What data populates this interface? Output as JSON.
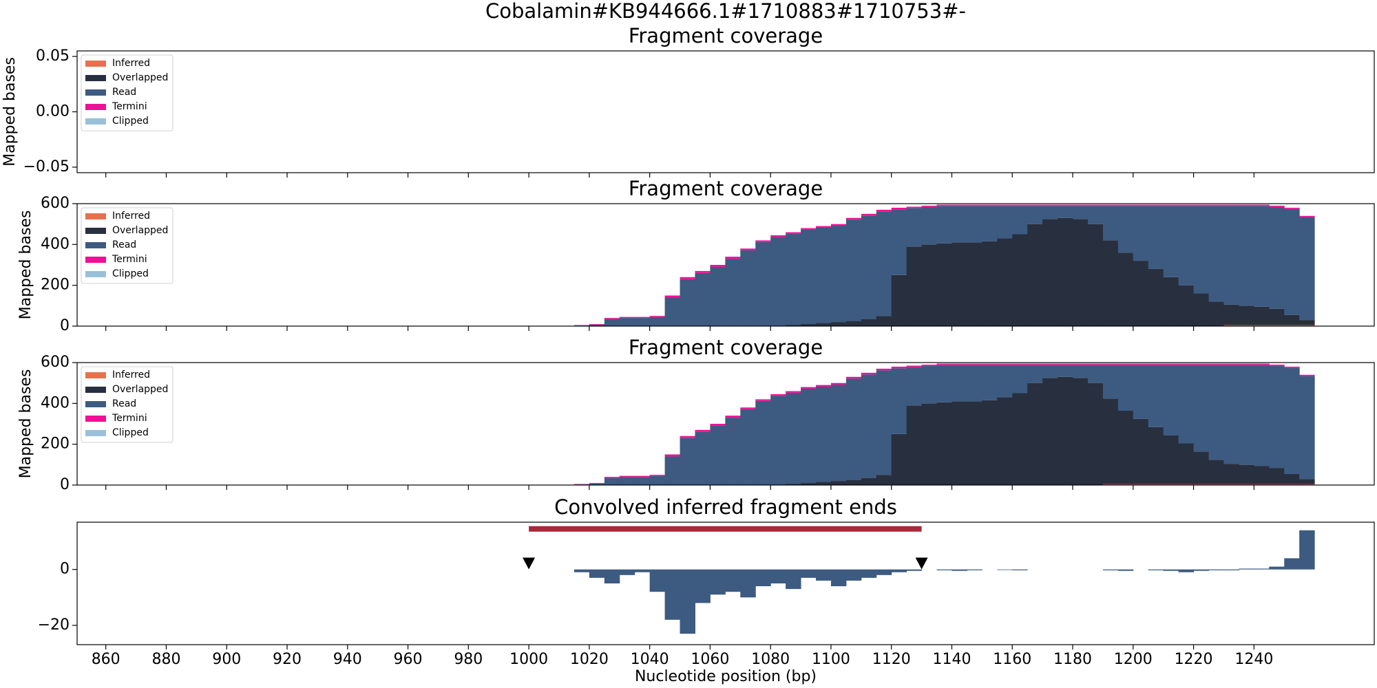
{
  "title": "Cobalamin#KB944666.1#1710883#1710753#-",
  "chart_data": [
    {
      "type": "histogram",
      "title": "Fragment coverage",
      "ylabel": "Mapped bases",
      "ylim": [
        -0.055,
        0.055
      ],
      "yticks": [
        {
          "value": -0.05,
          "label": "−0.05"
        },
        {
          "value": 0,
          "label": "0.00"
        },
        {
          "value": 0.05,
          "label": "0.05"
        }
      ],
      "legend": "upper left",
      "series": [
        {
          "name": "Inferred",
          "color": "#e8704e"
        },
        {
          "name": "Overlapped",
          "color": "#282f3f"
        },
        {
          "name": "Read",
          "color": "#3d5a80"
        },
        {
          "name": "Termini",
          "color": "#ee1196"
        },
        {
          "name": "Clipped",
          "color": "#98c1d9"
        }
      ]
    },
    {
      "type": "histogram",
      "title": "Fragment coverage",
      "ylabel": "Mapped bases",
      "ylim": [
        0,
        600
      ],
      "yticks": [
        0,
        200,
        400,
        600
      ],
      "legend": "upper left",
      "bins": [
        1015,
        1020,
        1025,
        1030,
        1035,
        1040,
        1045,
        1050,
        1055,
        1060,
        1065,
        1070,
        1075,
        1080,
        1085,
        1090,
        1095,
        1100,
        1105,
        1110,
        1115,
        1120,
        1125,
        1130,
        1135,
        1140,
        1145,
        1150,
        1155,
        1160,
        1165,
        1170,
        1175,
        1180,
        1185,
        1190,
        1195,
        1200,
        1205,
        1210,
        1215,
        1220,
        1225,
        1230,
        1235,
        1240,
        1245,
        1250,
        1255,
        1260
      ],
      "series": [
        {
          "name": "Inferred",
          "color": "#e8704e",
          "values": [
            0,
            0,
            0,
            0,
            0,
            0,
            0,
            0,
            0,
            0,
            0,
            0,
            0,
            0,
            0,
            0,
            0,
            0,
            0,
            0,
            0,
            0,
            0,
            0,
            0,
            0,
            0,
            0,
            0,
            0,
            0,
            0,
            0,
            0,
            0,
            0,
            0,
            0,
            0,
            0,
            0,
            0,
            0,
            5,
            5,
            5,
            5,
            5,
            5
          ]
        },
        {
          "name": "Overlapped",
          "color": "#282f3f",
          "values": [
            0,
            0,
            0,
            0,
            0,
            0,
            0,
            0,
            0,
            0,
            0,
            0,
            0,
            0,
            5,
            10,
            15,
            20,
            25,
            35,
            50,
            250,
            390,
            400,
            405,
            410,
            410,
            415,
            430,
            450,
            500,
            525,
            530,
            525,
            500,
            420,
            360,
            320,
            280,
            240,
            200,
            160,
            120,
            100,
            95,
            90,
            80,
            50,
            25
          ]
        },
        {
          "name": "Read",
          "color": "#3d5a80",
          "values": [
            3,
            7,
            35,
            40,
            40,
            45,
            140,
            230,
            260,
            290,
            330,
            372,
            412,
            437,
            447,
            462,
            467,
            472,
            497,
            507,
            512,
            322,
            189,
            184,
            184,
            179,
            179,
            174,
            159,
            139,
            89,
            64,
            59,
            64,
            89,
            169,
            229,
            269,
            309,
            349,
            389,
            429,
            469,
            484,
            489,
            494,
            499,
            519,
            504
          ]
        },
        {
          "name": "Termini",
          "color": "#ee1196",
          "values": [
            2,
            3,
            5,
            5,
            5,
            5,
            10,
            10,
            10,
            10,
            10,
            8,
            8,
            8,
            8,
            8,
            8,
            8,
            8,
            8,
            8,
            8,
            6,
            6,
            6,
            6,
            6,
            6,
            6,
            6,
            6,
            6,
            6,
            6,
            6,
            6,
            6,
            6,
            6,
            6,
            6,
            6,
            6,
            6,
            6,
            6,
            6,
            6,
            6
          ]
        },
        {
          "name": "Clipped",
          "color": "#98c1d9",
          "values": [
            0,
            0,
            0,
            0,
            0,
            0,
            0,
            0,
            0,
            0,
            0,
            0,
            0,
            0,
            0,
            0,
            0,
            0,
            0,
            0,
            0,
            0,
            0,
            0,
            0,
            0,
            0,
            0,
            0,
            0,
            0,
            0,
            0,
            0,
            0,
            0,
            0,
            0,
            0,
            0,
            0,
            0,
            0,
            0,
            0,
            0,
            0,
            0,
            0
          ]
        }
      ]
    },
    {
      "type": "histogram",
      "title": "Fragment coverage",
      "ylabel": "Mapped bases",
      "ylim": [
        0,
        600
      ],
      "yticks": [
        0,
        200,
        400,
        600
      ],
      "legend": "upper left",
      "bins": [
        1015,
        1020,
        1025,
        1030,
        1035,
        1040,
        1045,
        1050,
        1055,
        1060,
        1065,
        1070,
        1075,
        1080,
        1085,
        1090,
        1095,
        1100,
        1105,
        1110,
        1115,
        1120,
        1125,
        1130,
        1135,
        1140,
        1145,
        1150,
        1155,
        1160,
        1165,
        1170,
        1175,
        1180,
        1185,
        1190,
        1195,
        1200,
        1205,
        1210,
        1215,
        1220,
        1225,
        1230,
        1235,
        1240,
        1245,
        1250,
        1255,
        1260
      ],
      "series": [
        {
          "name": "Inferred",
          "color": "#e8704e",
          "values": [
            0,
            0,
            0,
            0,
            0,
            0,
            0,
            0,
            0,
            0,
            0,
            0,
            0,
            0,
            0,
            0,
            0,
            0,
            0,
            0,
            0,
            0,
            0,
            0,
            0,
            0,
            0,
            0,
            0,
            0,
            0,
            0,
            0,
            0,
            0,
            4,
            4,
            4,
            4,
            4,
            4,
            4,
            4,
            4,
            4,
            4,
            4,
            4,
            4
          ]
        },
        {
          "name": "Overlapped",
          "color": "#282f3f",
          "values": [
            0,
            0,
            0,
            0,
            0,
            0,
            0,
            0,
            0,
            0,
            0,
            0,
            0,
            0,
            5,
            10,
            15,
            20,
            25,
            35,
            50,
            250,
            390,
            400,
            405,
            410,
            410,
            415,
            430,
            450,
            500,
            525,
            530,
            525,
            500,
            420,
            360,
            320,
            280,
            240,
            200,
            160,
            120,
            100,
            95,
            90,
            80,
            50,
            25
          ]
        },
        {
          "name": "Read",
          "color": "#3d5a80",
          "values": [
            3,
            7,
            35,
            40,
            40,
            45,
            140,
            230,
            260,
            290,
            330,
            372,
            412,
            437,
            447,
            462,
            467,
            472,
            497,
            507,
            512,
            322,
            189,
            184,
            184,
            179,
            179,
            174,
            159,
            139,
            89,
            64,
            59,
            64,
            89,
            165,
            225,
            265,
            305,
            345,
            385,
            425,
            465,
            485,
            490,
            495,
            500,
            520,
            505
          ]
        },
        {
          "name": "Termini",
          "color": "#ee1196",
          "values": [
            2,
            3,
            5,
            5,
            5,
            5,
            10,
            10,
            10,
            10,
            10,
            8,
            8,
            8,
            8,
            8,
            8,
            8,
            8,
            8,
            8,
            8,
            6,
            6,
            6,
            6,
            6,
            6,
            6,
            6,
            6,
            6,
            6,
            6,
            6,
            6,
            6,
            6,
            6,
            6,
            6,
            6,
            6,
            6,
            6,
            6,
            6,
            6,
            6
          ]
        },
        {
          "name": "Clipped",
          "color": "#98c1d9",
          "values": [
            0,
            0,
            0,
            0,
            0,
            0,
            0,
            0,
            0,
            0,
            0,
            0,
            0,
            0,
            0,
            0,
            0,
            0,
            0,
            0,
            0,
            0,
            0,
            0,
            0,
            0,
            0,
            0,
            0,
            0,
            0,
            0,
            0,
            0,
            0,
            0,
            0,
            0,
            0,
            0,
            0,
            0,
            0,
            0,
            0,
            0,
            0,
            0,
            0
          ]
        }
      ]
    },
    {
      "type": "histogram",
      "title": "Convolved inferred fragment ends",
      "xlabel": "Nucleotide position (bp)",
      "xlim": [
        850.5,
        1279.8
      ],
      "xticks": [
        860,
        880,
        900,
        920,
        940,
        960,
        980,
        1000,
        1020,
        1040,
        1060,
        1080,
        1100,
        1120,
        1140,
        1160,
        1180,
        1200,
        1220,
        1240
      ],
      "ylim": [
        -26.9,
        16.9
      ],
      "yticks": [
        {
          "value": -20,
          "label": "−20"
        },
        0
      ],
      "color": "#3d5a80",
      "bins": [
        1015,
        1020,
        1025,
        1030,
        1035,
        1040,
        1045,
        1050,
        1055,
        1060,
        1065,
        1070,
        1075,
        1080,
        1085,
        1090,
        1095,
        1100,
        1105,
        1110,
        1115,
        1120,
        1125,
        1130,
        1135,
        1140,
        1145,
        1150,
        1155,
        1160,
        1165,
        1170,
        1175,
        1180,
        1185,
        1190,
        1195,
        1200,
        1205,
        1210,
        1215,
        1220,
        1225,
        1230,
        1235,
        1240,
        1245,
        1250,
        1255,
        1260
      ],
      "values": [
        -1,
        -3,
        -5,
        -2,
        -1,
        -8,
        -18,
        -23,
        -12,
        -9,
        -8,
        -10,
        -6,
        -5,
        -7,
        -3,
        -4,
        -6,
        -4,
        -3,
        -2,
        -1,
        -0.5,
        0,
        -0.3,
        -0.5,
        -0.3,
        0,
        -0.2,
        -0.3,
        0,
        0,
        0,
        0,
        0,
        -0.3,
        -0.5,
        0,
        -0.3,
        -0.5,
        -1,
        -0.5,
        -0.3,
        -0.3,
        0.3,
        0.3,
        1,
        4,
        14
      ],
      "span": {
        "x": [
          1000,
          1130
        ],
        "y": 14.5,
        "color": "#a7293a"
      },
      "markers": {
        "x": [
          1000,
          1130
        ],
        "y": [
          2,
          2
        ]
      }
    }
  ]
}
